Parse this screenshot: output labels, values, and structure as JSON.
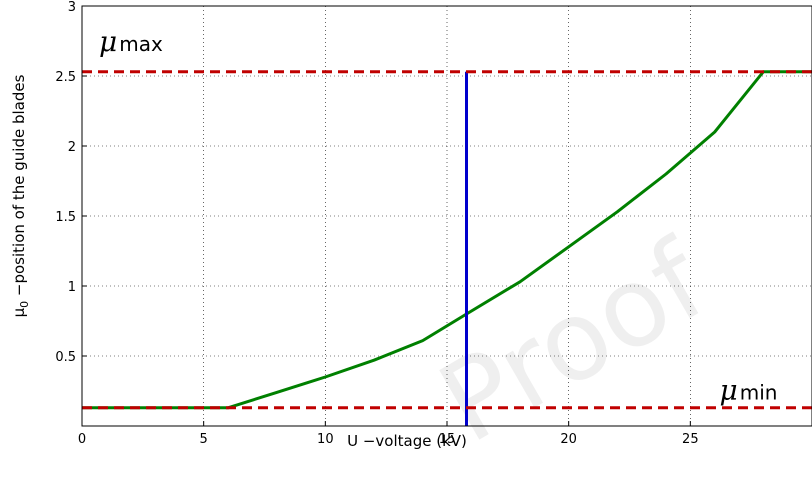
{
  "chart_data": {
    "type": "line",
    "xlabel": "U −voltage (kV)",
    "ylabel_main": "μ",
    "ylabel_sub": "0",
    "ylabel_rest": " −position of the guide blades",
    "xlim": [
      0,
      30
    ],
    "ylim": [
      0,
      3
    ],
    "xticks": [
      0,
      5,
      10,
      15,
      20,
      25
    ],
    "xtick_labels": [
      "0",
      "5",
      "10",
      "15",
      "20",
      "25"
    ],
    "yticks": [
      0.5,
      1,
      1.5,
      2,
      2.5,
      3
    ],
    "ytick_labels": [
      "0.5",
      "1",
      "1.5",
      "2",
      "2.5",
      "3"
    ],
    "grid": true,
    "series": [
      {
        "color": "#008000",
        "style": "solid",
        "x": [
          0,
          6,
          8,
          10,
          12,
          14,
          15.8,
          18,
          20,
          22,
          24,
          26,
          28,
          30
        ],
        "y": [
          0.13,
          0.13,
          0.24,
          0.35,
          0.47,
          0.61,
          0.8,
          1.03,
          1.28,
          1.53,
          1.8,
          2.1,
          2.53,
          2.53
        ]
      },
      {
        "color": "#0000cc",
        "style": "solid",
        "x": [
          15.8,
          15.8
        ],
        "y": [
          0,
          2.53
        ]
      },
      {
        "color": "#c00000",
        "style": "dashed",
        "x": [
          0,
          30
        ],
        "y": [
          2.53,
          2.53
        ]
      },
      {
        "color": "#c00000",
        "style": "dashed",
        "x": [
          0,
          30
        ],
        "y": [
          0.13,
          0.13
        ]
      }
    ],
    "annotations": [
      {
        "id": "mu-max",
        "text": "μ",
        "sub": "max",
        "x": 0.7,
        "y": 2.68
      },
      {
        "id": "mu-min",
        "text": "μ",
        "sub": "min",
        "x": 26.2,
        "y": 0.19
      }
    ]
  },
  "watermark": "Proof"
}
